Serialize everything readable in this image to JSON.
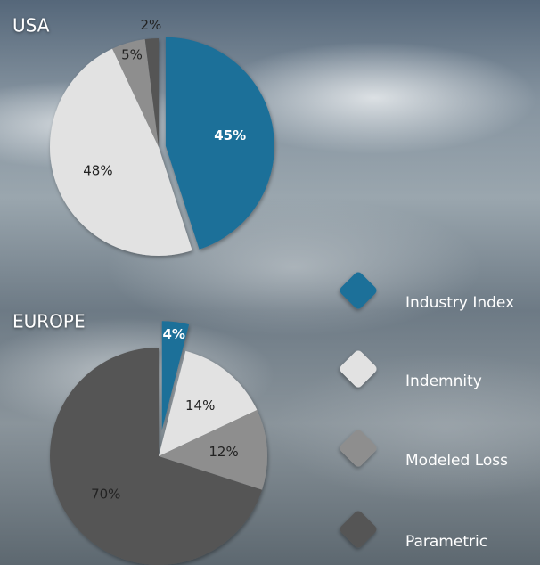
{
  "chart_data": [
    {
      "type": "pie",
      "title": "USA",
      "categories": [
        "Industry Index",
        "Indemnity",
        "Modeled Loss",
        "Parametric"
      ],
      "values": [
        45,
        48,
        5,
        2
      ],
      "value_labels": [
        "45%",
        "48%",
        "5%",
        "2%"
      ],
      "colors": [
        "#1f6f99",
        "#e2e2e2",
        "#8e8e8e",
        "#555555"
      ]
    },
    {
      "type": "pie",
      "title": "EUROPE",
      "categories": [
        "Industry Index",
        "Indemnity",
        "Modeled Loss",
        "Parametric"
      ],
      "values": [
        4,
        14,
        12,
        70
      ],
      "value_labels": [
        "4%",
        "14%",
        "12%",
        "70%"
      ],
      "colors": [
        "#1f6f99",
        "#e2e2e2",
        "#8e8e8e",
        "#555555"
      ]
    }
  ]
}
